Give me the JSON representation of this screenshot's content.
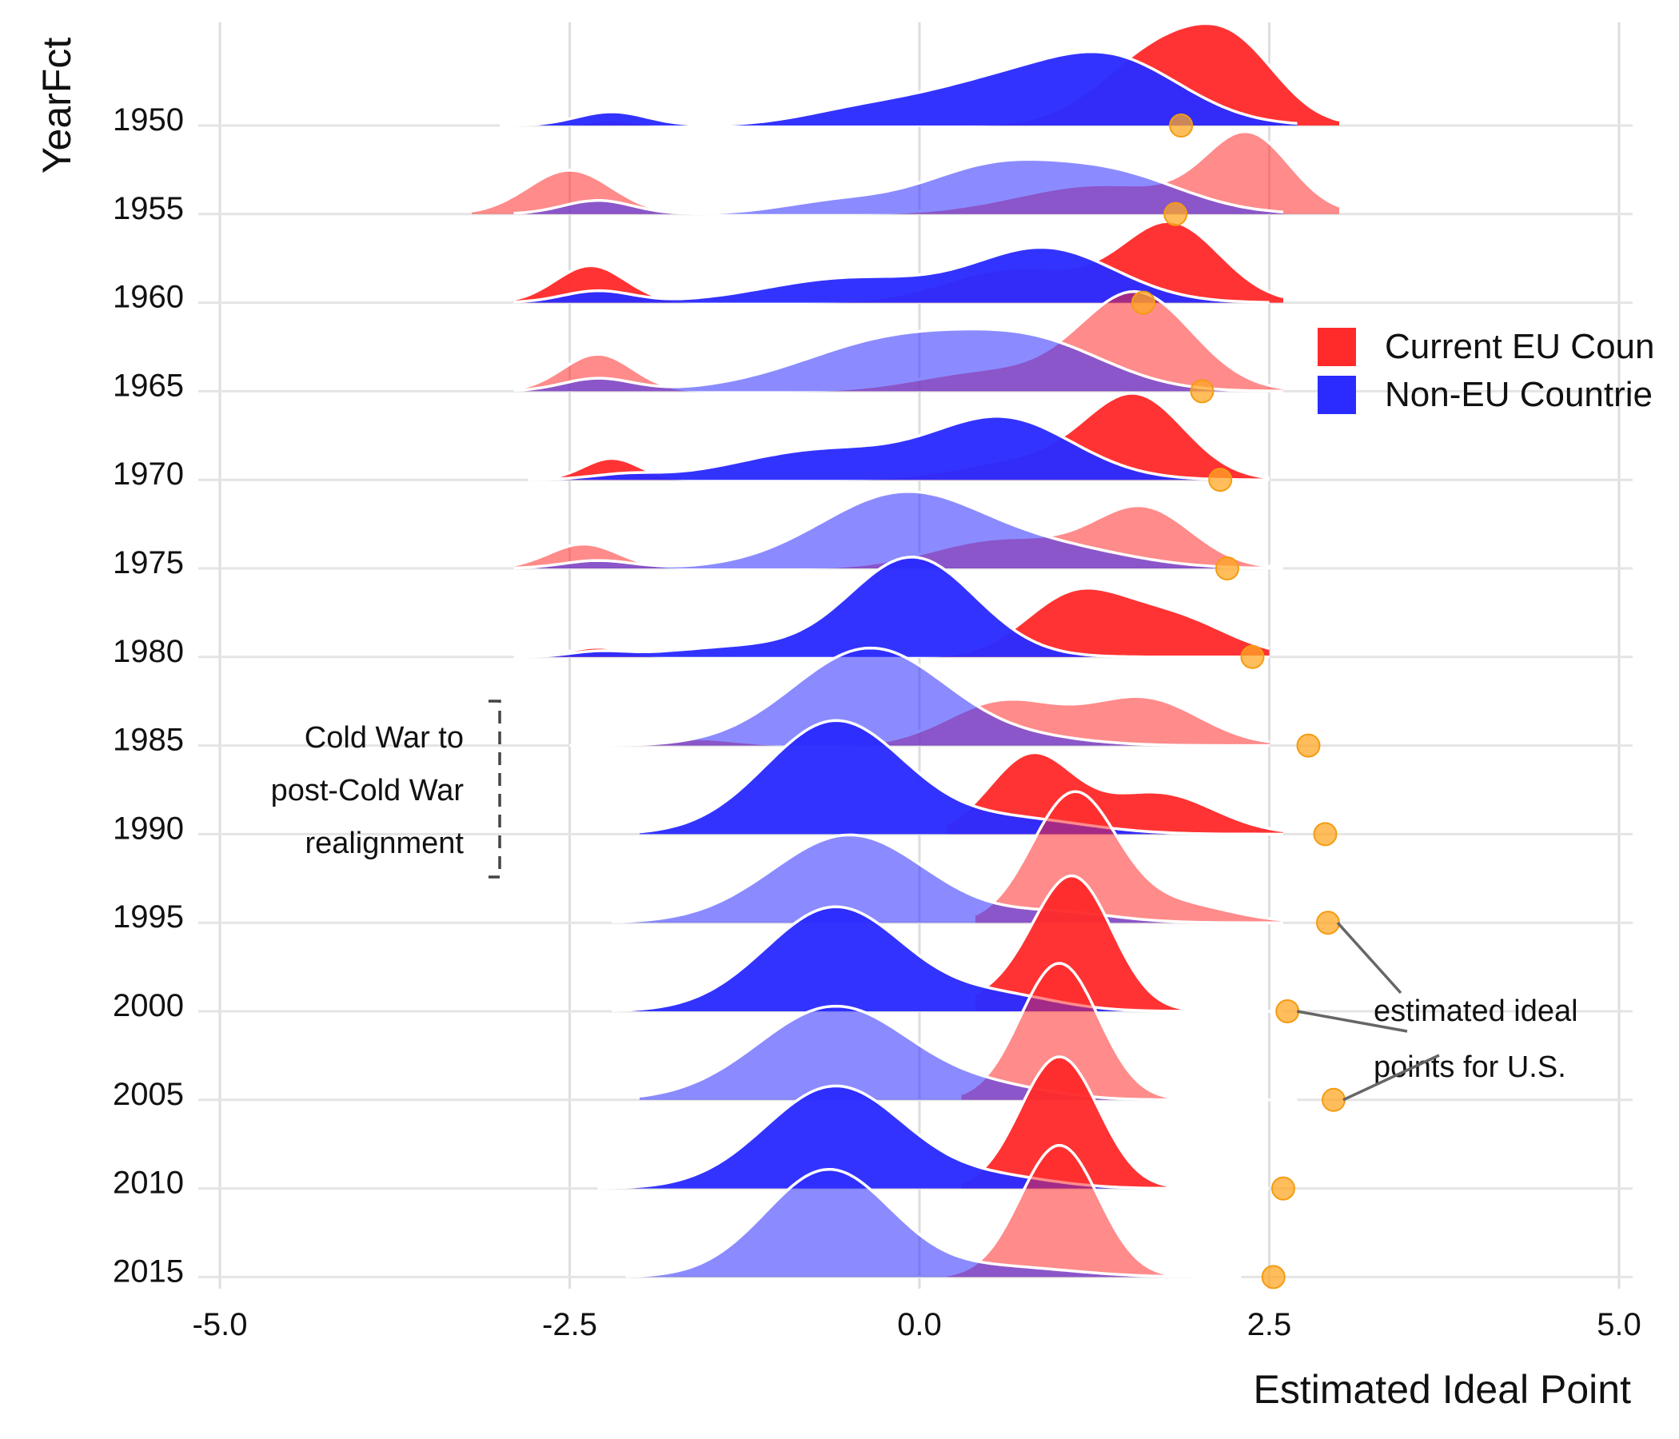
{
  "chart_data": {
    "type": "ridgeline",
    "xlabel": "Estimated Ideal Point",
    "ylabel": "YearFct",
    "xlim": [
      -5,
      5
    ],
    "x_ticks": [
      -5,
      -2.5,
      0,
      2.5,
      5
    ],
    "x_tick_labels": [
      "-5.0",
      "-2.5",
      "0.0",
      "2.5",
      "5.0"
    ],
    "grid": true,
    "categories": [
      "1950",
      "1955",
      "1960",
      "1965",
      "1970",
      "1975",
      "1980",
      "1985",
      "1990",
      "1995",
      "2000",
      "2005",
      "2010",
      "2015"
    ],
    "series": [
      {
        "name": "Current EU Countries",
        "color": "#ff2b2b",
        "ridges": [
          {
            "year": "1950",
            "range": [
              -2.5,
              3.0
            ],
            "components": [
              [
                1.8,
                0.45,
                0.85
              ],
              [
                2.3,
                0.3,
                0.45
              ],
              [
                -2.2,
                0.15,
                0.06
              ]
            ]
          },
          {
            "year": "1955",
            "range": [
              -3.2,
              3.0
            ],
            "components": [
              [
                2.35,
                0.3,
                0.78
              ],
              [
                1.3,
                0.6,
                0.3
              ],
              [
                -2.5,
                0.3,
                0.45
              ]
            ]
          },
          {
            "year": "1960",
            "range": [
              -2.9,
              2.6
            ],
            "components": [
              [
                1.8,
                0.35,
                0.8
              ],
              [
                0.7,
                0.5,
                0.35
              ],
              [
                -2.35,
                0.25,
                0.38
              ]
            ]
          },
          {
            "year": "1965",
            "range": [
              -2.9,
              2.6
            ],
            "components": [
              [
                1.55,
                0.4,
                1.0
              ],
              [
                0.5,
                0.5,
                0.2
              ],
              [
                -2.3,
                0.25,
                0.38
              ]
            ]
          },
          {
            "year": "1970",
            "range": [
              -2.8,
              2.5
            ],
            "components": [
              [
                1.55,
                0.35,
                0.82
              ],
              [
                0.8,
                0.5,
                0.2
              ],
              [
                -2.2,
                0.2,
                0.22
              ]
            ]
          },
          {
            "year": "1975",
            "range": [
              -2.9,
              2.6
            ],
            "components": [
              [
                1.6,
                0.35,
                0.6
              ],
              [
                0.6,
                0.5,
                0.3
              ],
              [
                -2.4,
                0.25,
                0.25
              ]
            ]
          },
          {
            "year": "1980",
            "range": [
              -2.9,
              2.5
            ],
            "components": [
              [
                1.1,
                0.35,
                0.6
              ],
              [
                1.8,
                0.4,
                0.4
              ],
              [
                -2.3,
                0.2,
                0.1
              ]
            ]
          },
          {
            "year": "1985",
            "range": [
              -2.4,
              2.5
            ],
            "components": [
              [
                0.6,
                0.4,
                0.45
              ],
              [
                1.6,
                0.4,
                0.48
              ],
              [
                -1.6,
                0.3,
                0.07
              ]
            ]
          },
          {
            "year": "1990",
            "range": [
              0.2,
              2.6
            ],
            "components": [
              [
                0.8,
                0.3,
                0.8
              ],
              [
                1.7,
                0.4,
                0.42
              ]
            ]
          },
          {
            "year": "1995",
            "range": [
              0.4,
              2.6
            ],
            "components": [
              [
                1.1,
                0.3,
                1.3
              ],
              [
                1.8,
                0.4,
                0.2
              ]
            ]
          },
          {
            "year": "2000",
            "range": [
              0.4,
              2.1
            ],
            "components": [
              [
                1.1,
                0.28,
                1.35
              ],
              [
                0.6,
                0.3,
                0.15
              ]
            ]
          },
          {
            "year": "2005",
            "range": [
              0.3,
              2.0
            ],
            "components": [
              [
                1.0,
                0.28,
                1.4
              ]
            ]
          },
          {
            "year": "2010",
            "range": [
              0.3,
              1.9
            ],
            "components": [
              [
                1.0,
                0.28,
                1.35
              ]
            ]
          },
          {
            "year": "2015",
            "range": [
              0.2,
              1.9
            ],
            "components": [
              [
                1.0,
                0.28,
                1.35
              ]
            ]
          }
        ]
      },
      {
        "name": "Non-EU Countries",
        "color": "#2b2bff",
        "ridges": [
          {
            "year": "1950",
            "range": [
              -3.0,
              2.7
            ],
            "components": [
              [
                1.4,
                0.5,
                0.6
              ],
              [
                0.5,
                0.6,
                0.4
              ],
              [
                -0.5,
                0.4,
                0.1
              ],
              [
                -2.2,
                0.25,
                0.14
              ]
            ]
          },
          {
            "year": "1955",
            "range": [
              -2.9,
              2.6
            ],
            "components": [
              [
                0.5,
                0.5,
                0.45
              ],
              [
                1.4,
                0.5,
                0.38
              ],
              [
                -0.6,
                0.4,
                0.12
              ],
              [
                -2.3,
                0.25,
                0.14
              ]
            ]
          },
          {
            "year": "1960",
            "range": [
              -2.9,
              2.5
            ],
            "components": [
              [
                0.9,
                0.5,
                0.55
              ],
              [
                -0.5,
                0.6,
                0.25
              ],
              [
                -2.3,
                0.25,
                0.12
              ]
            ]
          },
          {
            "year": "1965",
            "range": [
              -2.9,
              2.6
            ],
            "components": [
              [
                -0.1,
                0.7,
                0.55
              ],
              [
                0.9,
                0.5,
                0.35
              ],
              [
                -2.3,
                0.25,
                0.13
              ]
            ]
          },
          {
            "year": "1970",
            "range": [
              -2.8,
              2.5
            ],
            "components": [
              [
                0.6,
                0.5,
                0.62
              ],
              [
                -0.7,
                0.6,
                0.3
              ],
              [
                -2.1,
                0.25,
                0.05
              ]
            ]
          },
          {
            "year": "1975",
            "range": [
              -2.9,
              2.6
            ],
            "components": [
              [
                -0.1,
                0.6,
                0.78
              ],
              [
                1.1,
                0.5,
                0.15
              ],
              [
                -2.3,
                0.25,
                0.08
              ]
            ]
          },
          {
            "year": "1980",
            "range": [
              -2.9,
              2.5
            ],
            "components": [
              [
                -0.05,
                0.45,
                1.02
              ],
              [
                -1.3,
                0.5,
                0.1
              ],
              [
                -2.3,
                0.2,
                0.05
              ]
            ]
          },
          {
            "year": "1985",
            "range": [
              -2.5,
              2.5
            ],
            "components": [
              [
                -0.35,
                0.55,
                1.0
              ],
              [
                0.9,
                0.4,
                0.05
              ]
            ]
          },
          {
            "year": "1990",
            "range": [
              -2.0,
              2.6
            ],
            "components": [
              [
                -0.6,
                0.5,
                1.16
              ],
              [
                0.7,
                0.5,
                0.15
              ]
            ]
          },
          {
            "year": "1995",
            "range": [
              -2.2,
              2.6
            ],
            "components": [
              [
                -0.5,
                0.55,
                0.9
              ],
              [
                1.0,
                0.4,
                0.1
              ]
            ]
          },
          {
            "year": "2000",
            "range": [
              -2.2,
              2.6
            ],
            "components": [
              [
                -0.6,
                0.5,
                1.07
              ],
              [
                0.6,
                0.4,
                0.15
              ]
            ]
          },
          {
            "year": "2005",
            "range": [
              -2.0,
              2.7
            ],
            "components": [
              [
                -0.6,
                0.55,
                0.96
              ],
              [
                0.6,
                0.4,
                0.1
              ]
            ]
          },
          {
            "year": "2010",
            "range": [
              -2.3,
              2.5
            ],
            "components": [
              [
                -0.6,
                0.5,
                1.05
              ],
              [
                0.6,
                0.4,
                0.1
              ]
            ]
          },
          {
            "year": "2015",
            "range": [
              -2.1,
              2.3
            ],
            "components": [
              [
                -0.65,
                0.45,
                1.1
              ],
              [
                0.6,
                0.5,
                0.1
              ]
            ]
          }
        ]
      }
    ],
    "us_points": [
      {
        "year": "1950",
        "x": 1.87
      },
      {
        "year": "1955",
        "x": 1.83
      },
      {
        "year": "1960",
        "x": 1.6
      },
      {
        "year": "1965",
        "x": 2.02
      },
      {
        "year": "1970",
        "x": 2.15
      },
      {
        "year": "1975",
        "x": 2.2
      },
      {
        "year": "1980",
        "x": 2.38
      },
      {
        "year": "1985",
        "x": 2.78
      },
      {
        "year": "1990",
        "x": 2.9
      },
      {
        "year": "1995",
        "x": 2.92
      },
      {
        "year": "2000",
        "x": 2.63
      },
      {
        "year": "2005",
        "x": 2.96
      },
      {
        "year": "2010",
        "x": 2.6
      },
      {
        "year": "2015",
        "x": 2.53
      }
    ],
    "legend": {
      "position": "right",
      "items": [
        {
          "label": "Current EU Coun",
          "color": "#ff2b2b"
        },
        {
          "label": "Non-EU Countrie",
          "color": "#2b2bff"
        }
      ]
    },
    "annotations": {
      "bracket": {
        "from_year": "1985",
        "to_year": "1995",
        "lines": [
          "Cold War to",
          "post-Cold War",
          "realignment"
        ]
      },
      "us_label": {
        "lines": [
          "estimated ideal",
          "points for U.S."
        ]
      }
    }
  }
}
